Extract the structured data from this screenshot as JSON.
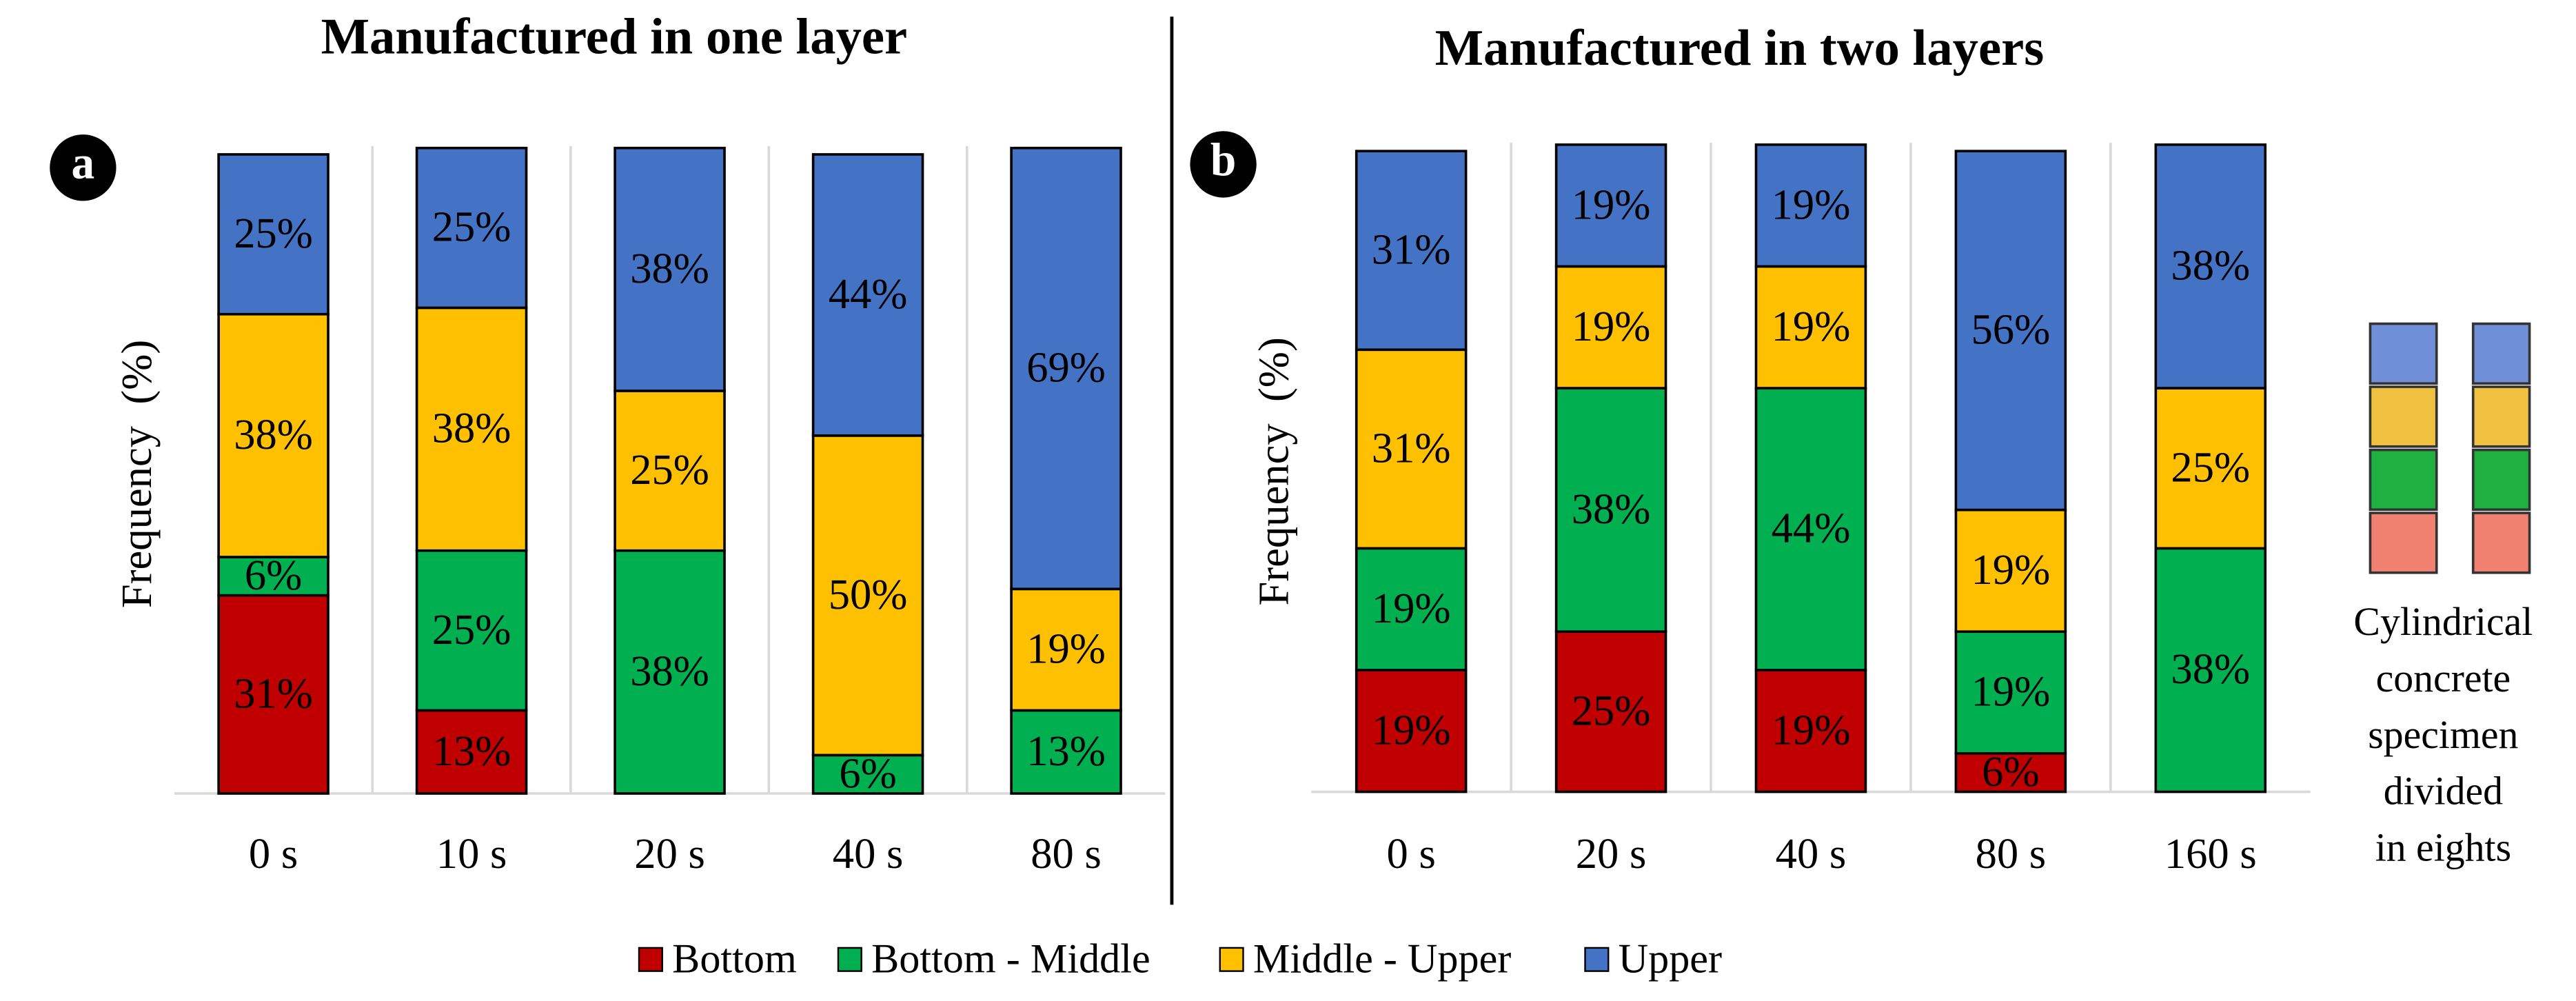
{
  "chart_data": [
    {
      "type": "bar",
      "stacked": true,
      "title": "Manufactured in one layer",
      "panel_label": "a",
      "y_label": "Frequency  (%)",
      "categories": [
        "0 s",
        "10 s",
        "20 s",
        "40 s",
        "80 s"
      ],
      "ylim": [
        0,
        100
      ],
      "series": [
        {
          "name": "Bottom",
          "color": "#c00000",
          "values": [
            31,
            13,
            0,
            0,
            0
          ],
          "value_labels": [
            "31%",
            "13%",
            null,
            null,
            null
          ]
        },
        {
          "name": "Bottom - Middle",
          "color": "#00b050",
          "values": [
            6,
            25,
            38,
            6,
            13
          ],
          "value_labels": [
            "6%",
            "25%",
            "38%",
            "6%",
            "13%"
          ]
        },
        {
          "name": "Middle - Upper",
          "color": "#ffc000",
          "values": [
            38,
            38,
            25,
            50,
            19
          ],
          "value_labels": [
            "38%",
            "38%",
            "25%",
            "50%",
            "19%"
          ]
        },
        {
          "name": "Upper",
          "color": "#4472c4",
          "values": [
            25,
            25,
            38,
            44,
            69
          ],
          "value_labels": [
            "25%",
            "25%",
            "38%",
            "44%",
            "69%"
          ]
        }
      ]
    },
    {
      "type": "bar",
      "stacked": true,
      "title": "Manufactured in two layers",
      "panel_label": "b",
      "y_label": "Frequency  (%)",
      "categories": [
        "0 s",
        "20 s",
        "40 s",
        "80 s",
        "160 s"
      ],
      "ylim": [
        0,
        100
      ],
      "series": [
        {
          "name": "Bottom",
          "color": "#c00000",
          "values": [
            19,
            25,
            19,
            6,
            0
          ],
          "value_labels": [
            "19%",
            "25%",
            "19%",
            "6%",
            null
          ]
        },
        {
          "name": "Bottom - Middle",
          "color": "#00b050",
          "values": [
            19,
            38,
            44,
            19,
            38
          ],
          "value_labels": [
            "19%",
            "38%",
            "44%",
            "19%",
            "38%"
          ]
        },
        {
          "name": "Middle - Upper",
          "color": "#ffc000",
          "values": [
            31,
            19,
            19,
            19,
            25
          ],
          "value_labels": [
            "31%",
            "19%",
            "19%",
            "19%",
            "25%"
          ]
        },
        {
          "name": "Upper",
          "color": "#4472c4",
          "values": [
            31,
            19,
            19,
            56,
            38
          ],
          "value_labels": [
            "31%",
            "19%",
            "19%",
            "56%",
            "38%"
          ]
        }
      ]
    }
  ],
  "annotation": [
    "Cylindrical",
    "concrete",
    "specimen",
    "divided",
    "in eights"
  ]
}
